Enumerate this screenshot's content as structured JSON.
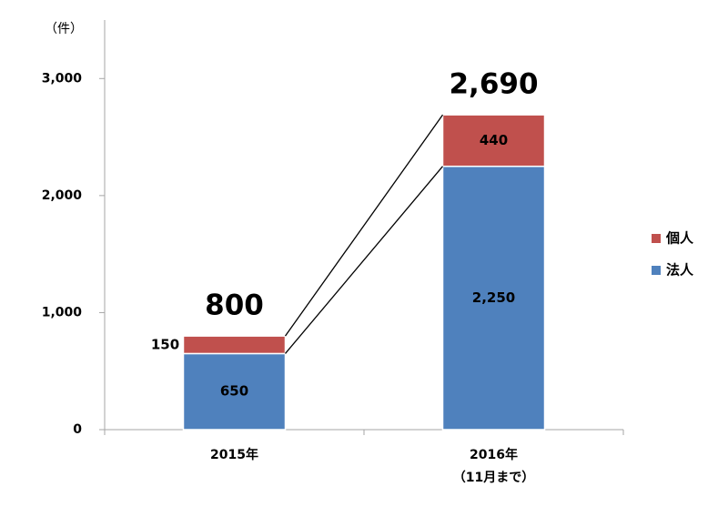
{
  "chart_data": {
    "type": "stacked_bar",
    "y_unit_label": "（件）",
    "categories": [
      "2015年",
      "2016年\n（11月まで）"
    ],
    "series": [
      {
        "name": "法人",
        "color": "#4f81bd",
        "values": [
          650,
          2250
        ],
        "value_labels": [
          "650",
          "2,250"
        ]
      },
      {
        "name": "個人",
        "color": "#c0504d",
        "values": [
          150,
          440
        ],
        "value_labels": [
          "150",
          "440"
        ]
      }
    ],
    "totals": [
      800,
      2690
    ],
    "total_labels": [
      "800",
      "2,690"
    ],
    "ylim": [
      0,
      3500
    ],
    "yticks": [
      0,
      {
        "value": 1000,
        "label": "1,000"
      },
      {
        "value": 2000,
        "label": "2,000"
      },
      {
        "value": 3000,
        "label": "3,000"
      }
    ],
    "legend": "right"
  }
}
